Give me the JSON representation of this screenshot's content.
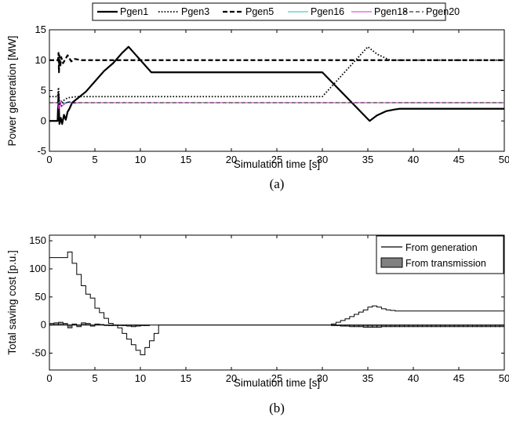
{
  "chart_data": [
    {
      "type": "line",
      "panel_caption": "(a)",
      "xlabel": "Simulation time [s]",
      "ylabel": "Power generation [MW]",
      "xlim": [
        0,
        50
      ],
      "ylim": [
        -5,
        15
      ],
      "xticks": [
        0,
        5,
        10,
        15,
        20,
        25,
        30,
        35,
        40,
        45,
        50
      ],
      "yticks": [
        -5,
        0,
        5,
        10,
        15
      ],
      "legend_position": "top (outside, horizontal)",
      "series": [
        {
          "name": "Pgen1",
          "color": "#000000",
          "style": "solid-thick",
          "x": [
            0,
            0.9,
            1.0,
            1.1,
            1.25,
            1.4,
            1.6,
            1.8,
            2.0,
            2.2,
            2.5,
            3.0,
            4.0,
            5.0,
            6.0,
            7.0,
            8.0,
            8.7,
            11.2,
            30.0,
            35.2,
            36.0,
            37.0,
            38.0,
            38.5,
            39.0,
            50.0
          ],
          "y": [
            0,
            0,
            4.5,
            -0.5,
            0.5,
            -0.5,
            1.0,
            0.2,
            1.5,
            2.0,
            3.0,
            3.6,
            4.8,
            6.5,
            8.2,
            9.5,
            11.2,
            12.2,
            8.0,
            8.0,
            0.0,
            0.9,
            1.6,
            1.9,
            2.0,
            2.0,
            2.0
          ]
        },
        {
          "name": "Pgen3",
          "color": "#000000",
          "style": "dotted",
          "x": [
            0,
            0.9,
            1.0,
            1.1,
            1.3,
            1.6,
            2.0,
            3.0,
            30.0,
            35.0,
            36.0,
            37.0,
            37.5,
            50.0
          ],
          "y": [
            4.0,
            4.0,
            5.5,
            3.0,
            2.5,
            3.4,
            3.8,
            4.0,
            4.0,
            12.2,
            11.0,
            10.3,
            10.0,
            10.0
          ]
        },
        {
          "name": "Pgen5",
          "color": "#000000",
          "style": "dashed-thick",
          "x": [
            0,
            0.95,
            1.0,
            1.05,
            1.1,
            1.2,
            1.3,
            1.5,
            1.8,
            2.0,
            2.4,
            2.8,
            3.5,
            30.0,
            35.0,
            37.0,
            50.0
          ],
          "y": [
            10.0,
            10.0,
            11.2,
            8.0,
            10.8,
            9.0,
            10.5,
            9.5,
            10.3,
            10.8,
            9.8,
            10.2,
            10.0,
            10.0,
            10.0,
            10.0,
            10.0
          ]
        },
        {
          "name": "Pgen16",
          "color": "#2ab9b9",
          "style": "solid-thin",
          "x": [
            0,
            50
          ],
          "y": [
            3.0,
            3.0
          ]
        },
        {
          "name": "Pgen18",
          "color": "#cc33cc",
          "style": "solid-thin",
          "x": [
            0,
            0.9,
            1.0,
            1.15,
            1.3,
            1.5,
            1.8,
            2.2,
            2.6,
            3.2,
            50.0
          ],
          "y": [
            3.0,
            3.0,
            2.0,
            3.5,
            2.3,
            2.6,
            2.9,
            3.2,
            2.9,
            3.0,
            3.0
          ]
        },
        {
          "name": "Pgen20",
          "color": "#000000",
          "style": "dashed-thin",
          "x": [
            0,
            0.9,
            1.0,
            1.1,
            1.3,
            1.6,
            2.0,
            2.4,
            3.0,
            50.0
          ],
          "y": [
            3.0,
            3.0,
            3.8,
            2.6,
            3.3,
            2.8,
            3.1,
            3.0,
            3.0,
            3.0
          ]
        }
      ]
    },
    {
      "type": "bar",
      "panel_caption": "(b)",
      "xlabel": "Simulation time [s]",
      "ylabel": "Total saving cost [p.u.]",
      "xlim": [
        0,
        50
      ],
      "ylim": [
        -80,
        160
      ],
      "xticks": [
        0,
        5,
        10,
        15,
        20,
        25,
        30,
        35,
        40,
        45,
        50
      ],
      "yticks": [
        -50,
        0,
        50,
        100,
        150
      ],
      "legend_position": "top-right (inside)",
      "series": [
        {
          "name": "From generation",
          "style": "stairs",
          "color": "#000000",
          "x": [
            0,
            2,
            2.5,
            3,
            3.5,
            4,
            4.5,
            5,
            5.5,
            6,
            6.5,
            7,
            7.5,
            8,
            8.5,
            9,
            9.5,
            10,
            10.5,
            11,
            11.5,
            12,
            31,
            31.5,
            32,
            32.5,
            33,
            33.5,
            34,
            34.5,
            35,
            35.5,
            36,
            36.5,
            37,
            37.5,
            38,
            50
          ],
          "y": [
            120,
            130,
            110,
            90,
            70,
            55,
            48,
            30,
            22,
            12,
            3,
            0,
            -5,
            -15,
            -25,
            -35,
            -45,
            -53,
            -40,
            -28,
            -15,
            0,
            2,
            5,
            8,
            11,
            15,
            19,
            23,
            27,
            32,
            34,
            32,
            29,
            27,
            26,
            25,
            25
          ]
        },
        {
          "name": "From transmission",
          "style": "bars",
          "color": "#808080",
          "x": [
            0,
            0.5,
            1,
            1.5,
            2,
            2.5,
            3,
            3.5,
            4,
            4.5,
            5,
            5.5,
            6,
            6.5,
            7,
            7.5,
            8,
            8.5,
            9,
            9.5,
            10,
            10.5,
            31,
            31.5,
            32,
            32.5,
            33,
            33.5,
            34,
            34.5,
            35,
            35.5,
            36,
            36.5,
            37,
            37.5,
            38,
            38.5,
            39,
            39.5,
            40,
            40.5,
            41,
            41.5,
            42,
            42.5,
            43,
            43.5,
            44,
            44.5,
            45,
            45.5,
            46,
            46.5,
            47,
            47.5,
            48,
            48.5,
            49,
            49.5
          ],
          "y": [
            3,
            4,
            5,
            3,
            -5,
            2,
            -3,
            4,
            3,
            -2,
            2,
            1,
            0,
            -1,
            0,
            0,
            -1,
            -2,
            -3,
            -2,
            -1,
            -1,
            -1,
            -1,
            -2,
            -2,
            -3,
            -3,
            -3,
            -4,
            -4,
            -4,
            -4,
            -3,
            -3,
            -3,
            -3,
            -3,
            -3,
            -3,
            -3,
            -3,
            -3,
            -3,
            -3,
            -3,
            -3,
            -3,
            -3,
            -3,
            -3,
            -3,
            -3,
            -3,
            -3,
            -3,
            -3,
            -3,
            -3,
            -3
          ]
        }
      ]
    }
  ]
}
